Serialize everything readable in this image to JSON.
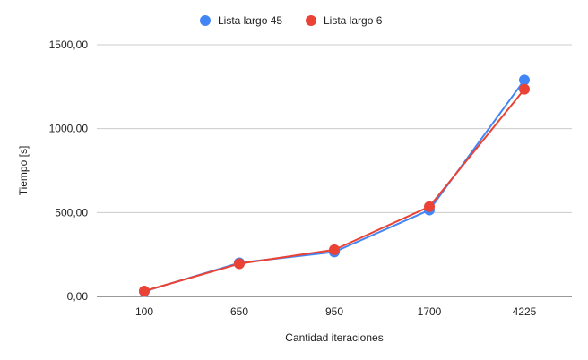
{
  "chart_data": {
    "type": "line",
    "title": "",
    "xlabel": "Cantidad iteraciones",
    "ylabel": "Tiempo [s]",
    "categories": [
      "100",
      "650",
      "950",
      "1700",
      "4225"
    ],
    "ylim": [
      0,
      1500
    ],
    "yticks": [
      0,
      500,
      1000,
      1500
    ],
    "ytick_labels": [
      "0,00",
      "500,00",
      "1000,00",
      "1500,00"
    ],
    "grid": true,
    "legend_position": "top",
    "series": [
      {
        "name": "Lista largo 45",
        "color": "#4285f4",
        "values": [
          30,
          200,
          265,
          515,
          1290
        ]
      },
      {
        "name": "Lista largo 6",
        "color": "#ea4335",
        "values": [
          32,
          195,
          278,
          535,
          1235
        ]
      }
    ]
  }
}
